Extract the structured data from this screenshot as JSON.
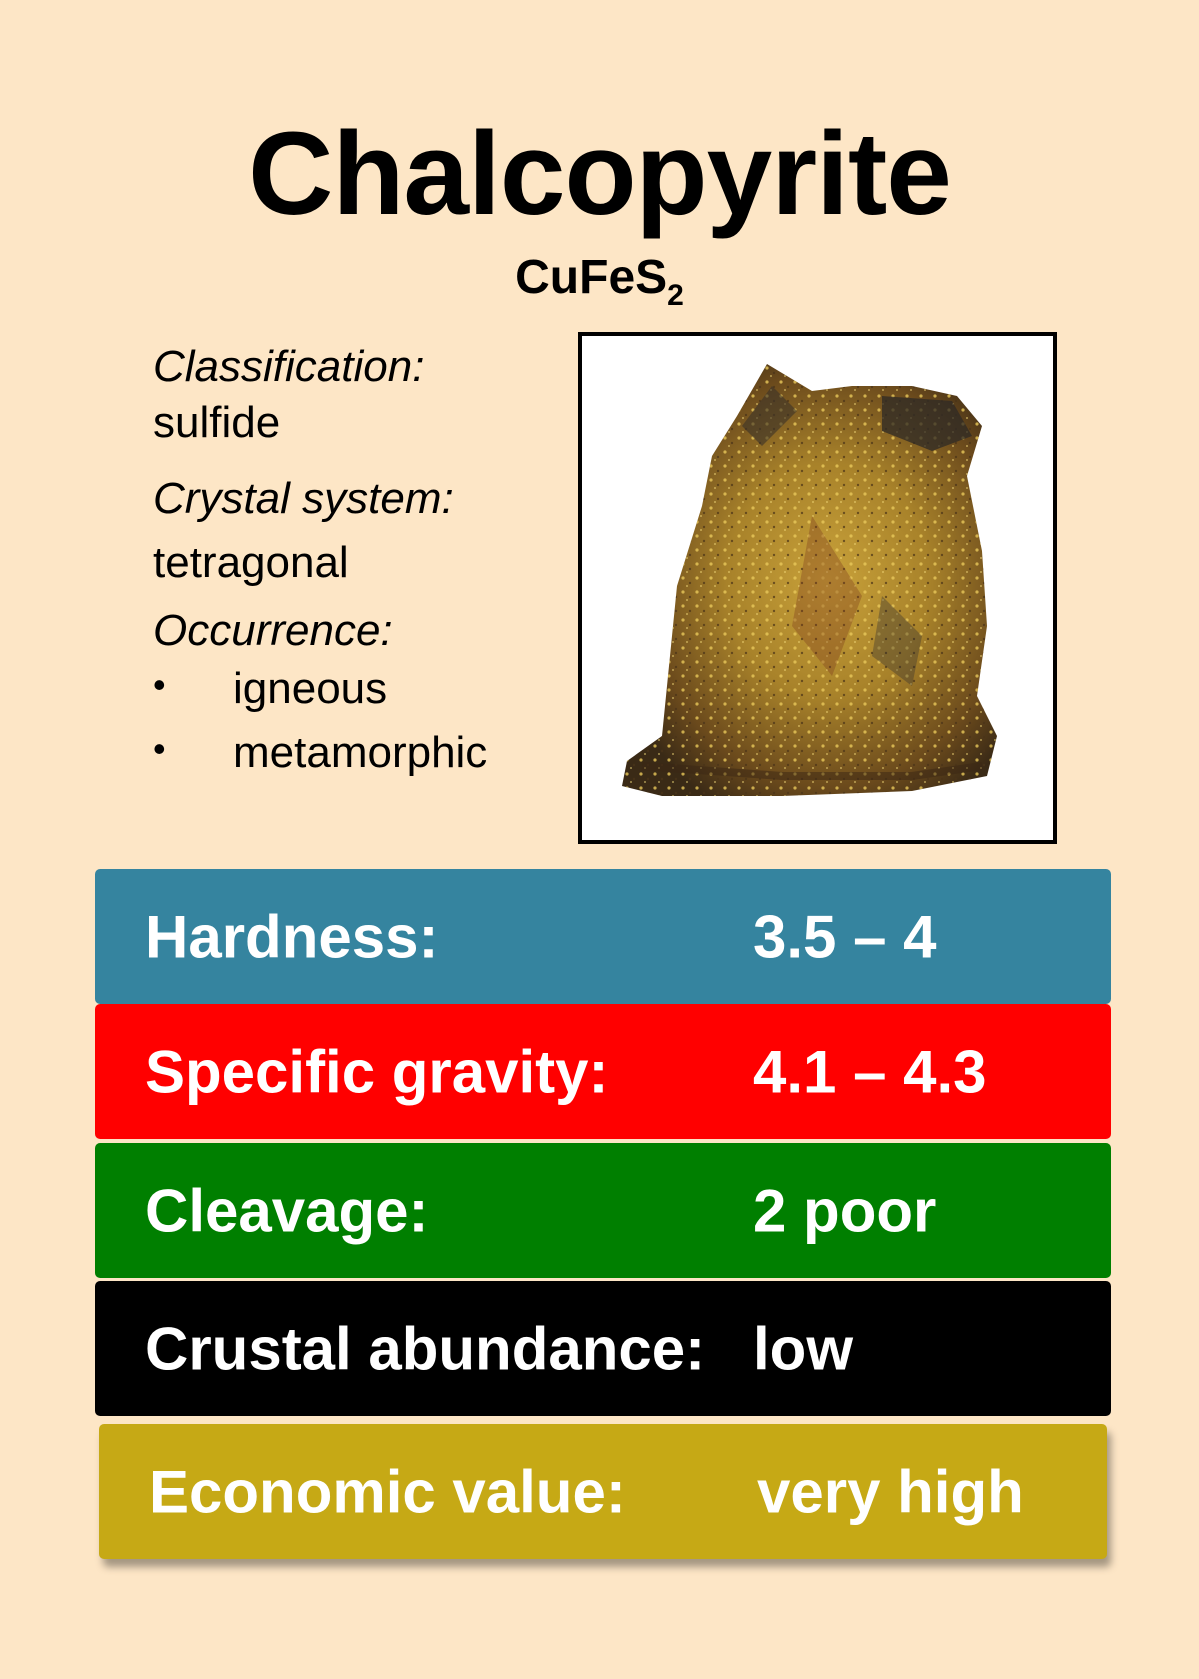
{
  "mineral": {
    "name": "Chalcopyrite",
    "formula_main": "CuFeS",
    "formula_sub": "2"
  },
  "info": {
    "classification_label": "Classification:",
    "classification_value": "sulfide",
    "crystal_label": "Crystal system:",
    "crystal_value": "tetragonal",
    "occurrence_label": "Occurrence:",
    "occurrence_items": [
      "igneous",
      "metamorphic"
    ]
  },
  "properties": [
    {
      "label": "Hardness:",
      "value": "3.5 – 4",
      "color": "#35849f"
    },
    {
      "label": "Specific gravity:",
      "value": "4.1 – 4.3",
      "color": "#ff0000"
    },
    {
      "label": "Cleavage:",
      "value": "2 poor",
      "color": "#007f00"
    },
    {
      "label": "Crustal abundance:",
      "value": "low",
      "color": "#000000"
    },
    {
      "label": "Economic value:",
      "value": "very high",
      "color": "#c6a915"
    }
  ],
  "image": {
    "icon": "mineral-specimen-photo"
  }
}
